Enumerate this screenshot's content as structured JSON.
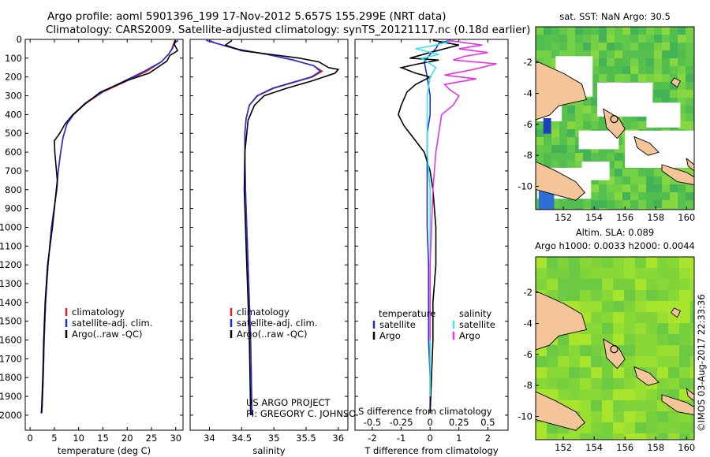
{
  "header": {
    "line1": "Argo profile: aoml 5901396_199 17-Nov-2012 5.657S 155.299E (NRT data)",
    "line2": "Climatology: CARS2009. Satellite-adjusted climatology: synTS_20121117.nc (0.18d earlier)"
  },
  "colors": {
    "climatology": "#e0201b",
    "satellite": "#1f2fd8",
    "argo": "#000000",
    "satellite_s": "#33e6e6",
    "argo_s": "#e633e6"
  },
  "credits": {
    "project": "US ARGO PROJECT",
    "pi": "PI: GREGORY C. JOHNSON",
    "imos": "©IMOS 03-Aug-2017 22:33:36"
  },
  "chart_data": [
    {
      "id": "temperature",
      "type": "line",
      "xlabel": "temperature (deg C)",
      "ylabel": "",
      "xlim": [
        -1,
        31.5
      ],
      "ylim": [
        2080,
        0
      ],
      "xticks": [
        0,
        5,
        10,
        15,
        20,
        25,
        30
      ],
      "yticks": [
        0,
        100,
        200,
        300,
        400,
        500,
        600,
        700,
        800,
        900,
        1000,
        1100,
        1200,
        1300,
        1400,
        1500,
        1600,
        1700,
        1800,
        1900,
        2000
      ],
      "legend": [
        "climatology",
        "satellite-adj. clim.",
        "Argo(..raw -QC)"
      ],
      "series": [
        {
          "name": "climatology",
          "color": "#e0201b",
          "x": [
            29.8,
            29.6,
            29.2,
            28.5,
            27.0,
            24.0,
            20.0,
            15.0,
            11.5,
            9.0,
            7.6,
            6.8,
            6.3,
            5.8,
            5.5,
            4.4,
            3.7,
            3.2,
            2.9,
            2.7,
            2.5,
            2.4
          ],
          "y": [
            5,
            20,
            50,
            80,
            120,
            170,
            220,
            280,
            340,
            400,
            450,
            520,
            600,
            700,
            800,
            1000,
            1200,
            1400,
            1600,
            1800,
            1950,
            1990
          ]
        },
        {
          "name": "satellite-adj. clim.",
          "color": "#1f2fd8",
          "x": [
            30.5,
            29.8,
            29.3,
            28.5,
            27.0,
            23.5,
            19.5,
            14.8,
            11.3,
            8.9,
            7.6,
            6.8,
            6.3,
            5.8,
            5.5,
            4.4,
            3.7,
            3.2,
            2.9,
            2.7,
            2.5,
            2.4
          ],
          "y": [
            5,
            20,
            50,
            80,
            120,
            170,
            220,
            280,
            340,
            400,
            450,
            520,
            600,
            700,
            800,
            1000,
            1200,
            1400,
            1600,
            1800,
            1950,
            1990
          ]
        },
        {
          "name": "Argo(..raw -QC)",
          "color": "#000000",
          "x": [
            29.9,
            29.7,
            30.4,
            28.8,
            28.2,
            24.5,
            19.8,
            14.5,
            11.5,
            8.8,
            7.2,
            6.1,
            5.0,
            5.1,
            5.6,
            4.6,
            3.6,
            3.1,
            2.8,
            2.6,
            2.4,
            2.3
          ],
          "y": [
            5,
            25,
            60,
            85,
            115,
            180,
            220,
            280,
            340,
            400,
            450,
            500,
            540,
            600,
            750,
            1000,
            1200,
            1400,
            1600,
            1800,
            1950,
            1990
          ]
        }
      ]
    },
    {
      "id": "salinity",
      "type": "line",
      "xlabel": "salinity",
      "ylabel": "",
      "xlim": [
        33.7,
        36.15
      ],
      "ylim": [
        2080,
        0
      ],
      "xticks": [
        34,
        34.5,
        35,
        35.5,
        36
      ],
      "legend": [
        "climatology",
        "satellite-adj. clim.",
        "Argo(..raw -QC)"
      ],
      "series": [
        {
          "name": "climatology",
          "color": "#e0201b",
          "x": [
            34.0,
            34.1,
            34.4,
            34.9,
            35.3,
            35.62,
            35.75,
            35.6,
            35.3,
            35.0,
            34.75,
            34.62,
            34.57,
            34.55,
            34.55,
            34.56,
            34.58,
            34.6,
            34.62,
            34.64,
            34.65,
            34.66
          ],
          "y": [
            5,
            20,
            50,
            80,
            110,
            140,
            170,
            200,
            230,
            260,
            300,
            350,
            420,
            500,
            600,
            800,
            1000,
            1200,
            1400,
            1600,
            1800,
            2000
          ]
        },
        {
          "name": "satellite-adj. clim.",
          "color": "#1f2fd8",
          "x": [
            33.95,
            34.1,
            34.4,
            34.9,
            35.3,
            35.62,
            35.72,
            35.58,
            35.28,
            34.98,
            34.74,
            34.62,
            34.57,
            34.55,
            34.55,
            34.56,
            34.58,
            34.6,
            34.62,
            34.64,
            34.65,
            34.66
          ],
          "y": [
            5,
            20,
            50,
            80,
            110,
            140,
            170,
            200,
            230,
            260,
            300,
            350,
            420,
            500,
            600,
            800,
            1000,
            1200,
            1400,
            1600,
            1800,
            2000
          ]
        },
        {
          "name": "Argo(..raw -QC)",
          "color": "#000000",
          "x": [
            34.35,
            34.25,
            34.5,
            34.95,
            35.4,
            35.7,
            35.85,
            36.0,
            35.95,
            35.6,
            35.2,
            34.85,
            34.7,
            34.6,
            34.55,
            34.54,
            34.56,
            34.58,
            34.6,
            34.62,
            34.63,
            34.64
          ],
          "y": [
            5,
            30,
            60,
            80,
            100,
            120,
            150,
            160,
            180,
            220,
            260,
            300,
            350,
            430,
            600,
            800,
            1000,
            1200,
            1400,
            1600,
            1800,
            2000
          ]
        }
      ]
    },
    {
      "id": "difference",
      "type": "line",
      "xlabel": "T difference from climatology",
      "xlabel_top": "S difference from climatology",
      "xlim": [
        -2.6,
        2.7
      ],
      "ylim": [
        2080,
        0
      ],
      "xticks": [
        -2,
        -1,
        0,
        1,
        2
      ],
      "xticks_s": [
        "-0.5",
        "-0.25",
        "0",
        "0.25",
        "0.5"
      ],
      "xticks_s_values": [
        -2,
        -1,
        0,
        1,
        2
      ],
      "legend": {
        "temperature_header": "temperature",
        "salinity_header": "salinity",
        "temperature": [
          "satellite",
          "Argo"
        ],
        "salinity": [
          "satellite",
          "Argo"
        ]
      },
      "series": [
        {
          "name": "temperature satellite",
          "color": "#1f2fd8",
          "x": [
            0.7,
            0.3,
            0.2,
            0.0,
            -0.2,
            -0.1,
            0.0,
            0.0,
            -0.1,
            -0.1,
            -0.1,
            -0.1,
            -0.1,
            -0.05,
            -0.05,
            -0.05,
            0.0,
            0.0,
            0.0
          ],
          "y": [
            5,
            20,
            50,
            80,
            120,
            200,
            300,
            400,
            500,
            600,
            700,
            800,
            1000,
            1200,
            1400,
            1600,
            1800,
            1950,
            1990
          ]
        },
        {
          "name": "temperature Argo",
          "color": "#000000",
          "x": [
            0.1,
            1.0,
            0.5,
            0.0,
            -0.7,
            0.3,
            -0.4,
            -1.0,
            -0.5,
            0.0,
            -0.5,
            -0.8,
            -1.0,
            -1.1,
            -0.9,
            -0.6,
            -0.2,
            0.0,
            0.1,
            0.2,
            0.2,
            0.1,
            0.1,
            0.0
          ],
          "y": [
            5,
            30,
            50,
            70,
            100,
            110,
            130,
            150,
            180,
            200,
            240,
            280,
            350,
            400,
            460,
            520,
            600,
            700,
            800,
            1000,
            1200,
            1400,
            1600,
            1990
          ]
        },
        {
          "name": "salinity satellite",
          "color": "#33e6e6",
          "x": [
            0.8,
            0.2,
            -0.5,
            0.3,
            -0.3,
            0.2,
            0.0,
            -0.1,
            -0.1,
            -0.1,
            0.0,
            0.0,
            0.0,
            0.0,
            0.0,
            0.0
          ],
          "y": [
            5,
            30,
            50,
            80,
            100,
            150,
            200,
            300,
            400,
            600,
            800,
            1000,
            1200,
            1400,
            1600,
            1900
          ]
        },
        {
          "name": "salinity Argo",
          "color": "#e633e6",
          "x": [
            0.6,
            1.8,
            1.0,
            2.0,
            1.2,
            0.8,
            2.3,
            1.5,
            0.5,
            1.6,
            0.5,
            0.7,
            1.0,
            0.8,
            0.4,
            0.3,
            0.2,
            0.1,
            0.05,
            0.0,
            0.0
          ],
          "y": [
            5,
            30,
            50,
            70,
            90,
            110,
            130,
            160,
            190,
            210,
            240,
            270,
            300,
            350,
            400,
            500,
            600,
            800,
            1000,
            1200,
            1600
          ]
        }
      ]
    },
    {
      "id": "sst-map",
      "type": "heatmap",
      "title": "sat. SST: NaN Argo: 30.5",
      "xlim": [
        150.2,
        160.5
      ],
      "ylim": [
        -11.5,
        0.3
      ],
      "xticks": [
        152,
        154,
        156,
        158,
        160
      ],
      "yticks": [
        -2,
        -4,
        -6,
        -8,
        -10
      ],
      "marker": {
        "lon": 155.299,
        "lat": -5.657
      }
    },
    {
      "id": "sla-map",
      "type": "heatmap",
      "title": "Altim. SLA: 0.089",
      "subtitle": "Argo h1000: 0.0033 h2000: 0.0044",
      "xlim": [
        150.2,
        160.5
      ],
      "ylim": [
        -11.5,
        0.3
      ],
      "xticks": [
        152,
        154,
        156,
        158,
        160
      ],
      "yticks": [
        -2,
        -4,
        -6,
        -8,
        -10
      ],
      "marker": {
        "lon": 155.299,
        "lat": -5.657
      }
    }
  ]
}
